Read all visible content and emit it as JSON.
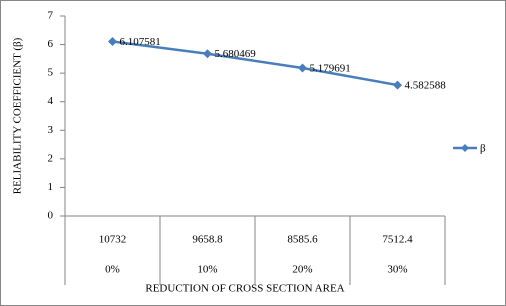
{
  "chart_data": {
    "type": "line",
    "y_label": "RELIABILITY COEFFICIENT (β)",
    "x_label": "REDUCTION OF CROSS SECTION AREA",
    "categories": [
      "10732",
      "9658.8",
      "8585.6",
      "7512.4"
    ],
    "category_groups": [
      "0%",
      "10%",
      "20%",
      "30%"
    ],
    "series": [
      {
        "name": "β",
        "color": "#4a7ebb",
        "values": [
          6.107581,
          5.680469,
          5.179691,
          4.582588
        ]
      }
    ],
    "ylim": [
      0,
      7
    ],
    "yticks": [
      0,
      1,
      2,
      3,
      4,
      5,
      6,
      7
    ],
    "grid": false,
    "legend": "right"
  }
}
